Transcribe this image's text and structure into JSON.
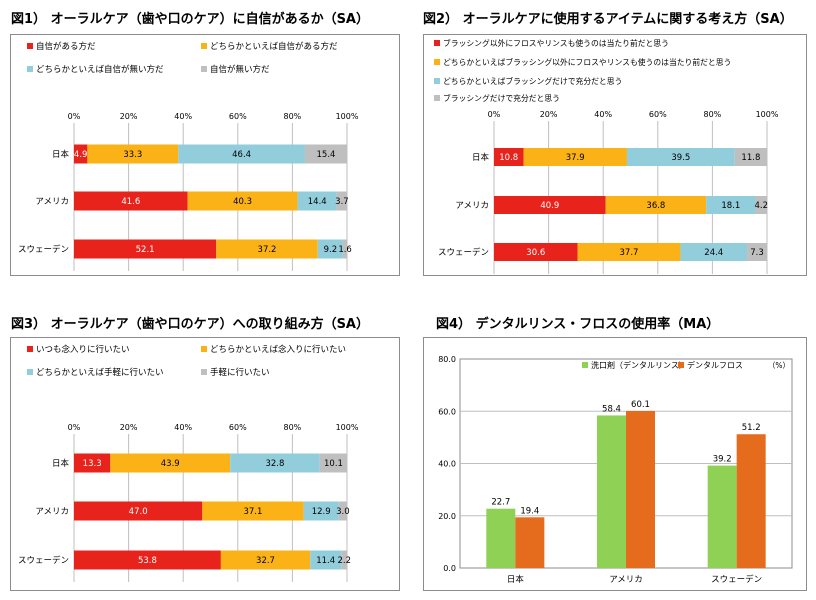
{
  "colors": {
    "red": "#e8231c",
    "orange": "#fbb216",
    "blue": "#92cddc",
    "gray": "#bfbfbf",
    "green": "#8fd155",
    "darkorange": "#e56b1d"
  },
  "chart_data": [
    {
      "type": "bar",
      "orientation": "horizontal-stacked-percent",
      "title": "図1） オーラルケア（歯や口のケア）に自信があるか（SA）",
      "categories": [
        "日本",
        "アメリカ",
        "スウェーデン"
      ],
      "xlim": [
        0,
        100
      ],
      "ticks": [
        "0%",
        "20%",
        "40%",
        "60%",
        "80%",
        "100%"
      ],
      "legend_position": "top",
      "series": [
        {
          "name": "自信がある方だ",
          "color": "red",
          "values": [
            4.9,
            41.6,
            52.1
          ],
          "labels": [
            "4.9",
            "41.6",
            "52.1"
          ]
        },
        {
          "name": "どちらかといえば自信がある方だ",
          "color": "orange",
          "values": [
            33.3,
            40.3,
            37.2
          ],
          "labels": [
            "33.3",
            "40.3",
            "37.2"
          ]
        },
        {
          "name": "どちらかといえば自信が無い方だ",
          "color": "blue",
          "values": [
            46.4,
            14.4,
            9.2
          ],
          "labels": [
            "46.4",
            "14.4",
            "9.2"
          ]
        },
        {
          "name": "自信が無い方だ",
          "color": "gray",
          "values": [
            15.4,
            3.7,
            1.6
          ],
          "labels": [
            "15.4",
            "3.7",
            "1.6"
          ]
        }
      ]
    },
    {
      "type": "bar",
      "orientation": "horizontal-stacked-percent",
      "title": "図2） オーラルケアに使用するアイテムに関する考え方（SA）",
      "categories": [
        "日本",
        "アメリカ",
        "スウェーデン"
      ],
      "xlim": [
        0,
        100
      ],
      "ticks": [
        "0%",
        "20%",
        "40%",
        "60%",
        "80%",
        "100%"
      ],
      "legend_position": "top",
      "series": [
        {
          "name": "ブラッシング以外にフロスやリンスも使うのは当たり前だと思う",
          "color": "red",
          "values": [
            10.8,
            40.9,
            30.6
          ],
          "labels": [
            "10.8",
            "40.9",
            "30.6"
          ]
        },
        {
          "name": "どちらかといえばブラッシング以外にフロスやリンスも使うのは当たり前だと思う",
          "color": "orange",
          "values": [
            37.9,
            36.8,
            37.7
          ],
          "labels": [
            "37.9",
            "36.8",
            "37.7"
          ]
        },
        {
          "name": "どちらかといえばブラッシングだけで充分だと思う",
          "color": "blue",
          "values": [
            39.5,
            18.1,
            24.4
          ],
          "labels": [
            "39.5",
            "18.1",
            "24.4"
          ]
        },
        {
          "name": "ブラッシングだけで充分だと思う",
          "color": "gray",
          "values": [
            11.8,
            4.2,
            7.3
          ],
          "labels": [
            "11.8",
            "4.2",
            "7.3"
          ]
        }
      ]
    },
    {
      "type": "bar",
      "orientation": "horizontal-stacked-percent",
      "title": "図3） オーラルケア（歯や口のケア）への取り組み方（SA）",
      "categories": [
        "日本",
        "アメリカ",
        "スウェーデン"
      ],
      "xlim": [
        0,
        100
      ],
      "ticks": [
        "0%",
        "20%",
        "40%",
        "60%",
        "80%",
        "100%"
      ],
      "legend_position": "top",
      "series": [
        {
          "name": "いつも念入りに行いたい",
          "color": "red",
          "values": [
            13.3,
            47.0,
            53.8
          ],
          "labels": [
            "13.3",
            "47.0",
            "53.8"
          ]
        },
        {
          "name": "どちらかといえば念入りに行いたい",
          "color": "orange",
          "values": [
            43.9,
            37.1,
            32.7
          ],
          "labels": [
            "43.9",
            "37.1",
            "32.7"
          ]
        },
        {
          "name": "どちらかといえば手軽に行いたい",
          "color": "blue",
          "values": [
            32.8,
            12.9,
            11.4
          ],
          "labels": [
            "32.8",
            "12.9",
            "11.4"
          ]
        },
        {
          "name": "手軽に行いたい",
          "color": "gray",
          "values": [
            10.1,
            3.0,
            2.2
          ],
          "labels": [
            "10.1",
            "3.0",
            "2.2"
          ]
        }
      ]
    },
    {
      "type": "bar",
      "orientation": "vertical-grouped",
      "title": "図4） デンタルリンス・フロスの使用率（MA）",
      "categories": [
        "日本",
        "アメリカ",
        "スウェーデン"
      ],
      "ylim": [
        0,
        80
      ],
      "ticks": [
        "0.0",
        "20.0",
        "40.0",
        "60.0",
        "80.0"
      ],
      "unit": "（%）",
      "legend_position": "top-left",
      "series": [
        {
          "name": "洗口剤（デンタルリンス）",
          "color": "green",
          "values": [
            22.7,
            58.4,
            39.2
          ],
          "labels": [
            "22.7",
            "58.4",
            "39.2"
          ]
        },
        {
          "name": "デンタルフロス",
          "color": "darkorange",
          "values": [
            19.4,
            60.1,
            51.2
          ],
          "labels": [
            "19.4",
            "60.1",
            "51.2"
          ]
        }
      ]
    }
  ]
}
